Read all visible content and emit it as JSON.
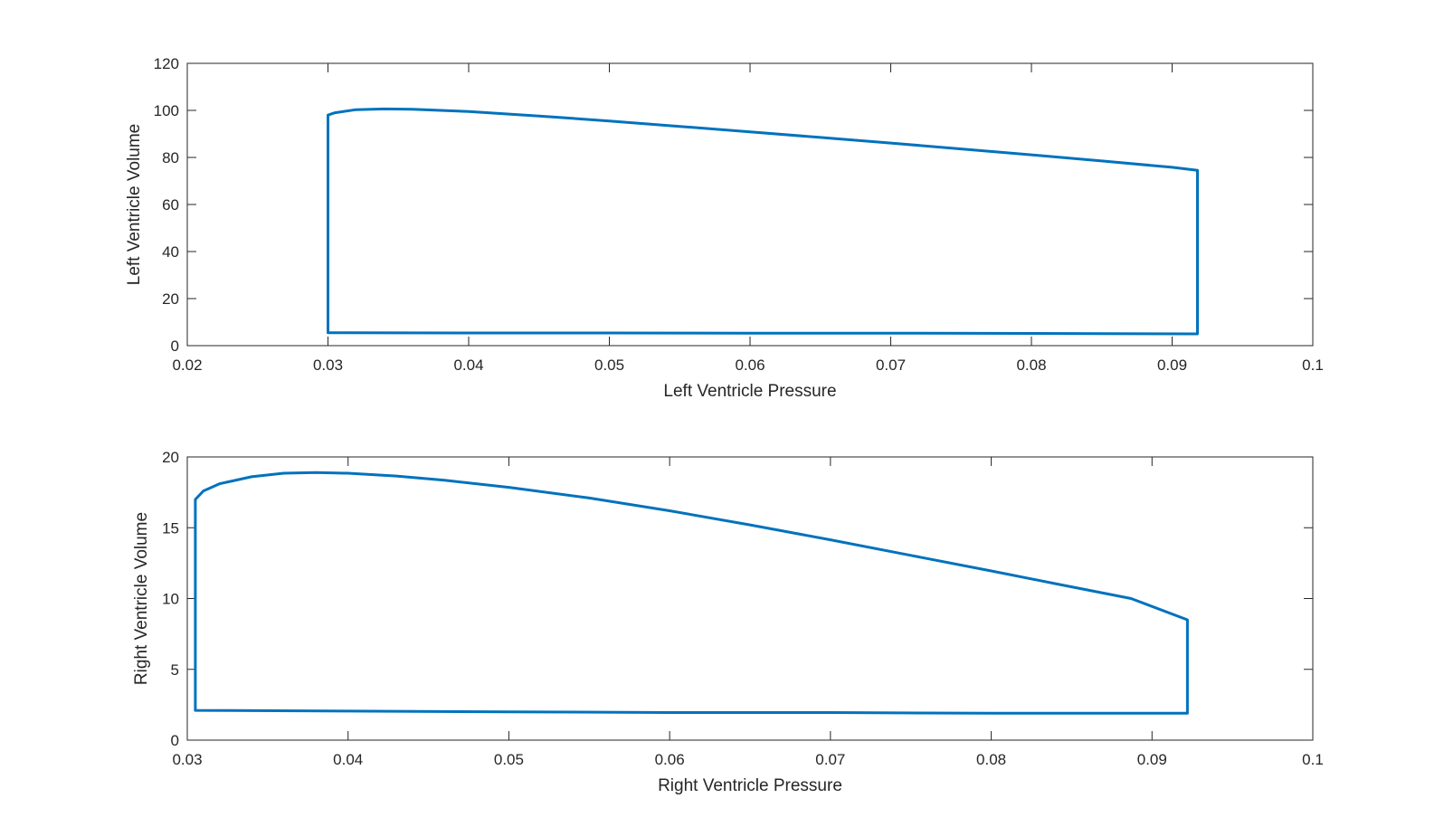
{
  "chart_data": [
    {
      "type": "line",
      "title": "",
      "xlabel": "Left Ventricle Pressure",
      "ylabel": "Left Ventricle Volume",
      "xlim": [
        0.02,
        0.1
      ],
      "ylim": [
        0,
        120
      ],
      "xticks": [
        "0.02",
        "0.03",
        "0.04",
        "0.05",
        "0.06",
        "0.07",
        "0.08",
        "0.09",
        "0.1"
      ],
      "yticks": [
        "0",
        "20",
        "40",
        "60",
        "80",
        "100",
        "120"
      ],
      "grid": false,
      "line_color": "#0072BD",
      "series": [
        {
          "x": [
            0.03,
            0.03,
            0.0305,
            0.032,
            0.034,
            0.036,
            0.04,
            0.045,
            0.05,
            0.055,
            0.06,
            0.065,
            0.07,
            0.075,
            0.08,
            0.085,
            0.09,
            0.0918,
            0.0918,
            0.0918,
            0.085,
            0.08,
            0.07,
            0.06,
            0.05,
            0.04,
            0.03,
            0.03
          ],
          "y": [
            5.5,
            98,
            99.0,
            100.3,
            100.6,
            100.5,
            99.5,
            97.6,
            95.5,
            93.2,
            90.9,
            88.5,
            86.1,
            83.6,
            81.1,
            78.5,
            75.8,
            74.5,
            60,
            5,
            5.1,
            5.2,
            5.3,
            5.3,
            5.4,
            5.4,
            5.5,
            5.5
          ]
        }
      ]
    },
    {
      "type": "line",
      "title": "",
      "xlabel": "Right Ventricle Pressure",
      "ylabel": "Right Ventricle Volume",
      "xlim": [
        0.03,
        0.1
      ],
      "ylim": [
        0,
        20
      ],
      "xticks": [
        "0.03",
        "0.04",
        "0.05",
        "0.06",
        "0.07",
        "0.08",
        "0.09",
        "0.1"
      ],
      "yticks": [
        "0",
        "5",
        "10",
        "15",
        "20"
      ],
      "grid": false,
      "line_color": "#0072BD",
      "series": [
        {
          "x": [
            0.0305,
            0.0305,
            0.031,
            0.032,
            0.034,
            0.036,
            0.038,
            0.04,
            0.043,
            0.046,
            0.05,
            0.055,
            0.06,
            0.065,
            0.07,
            0.075,
            0.08,
            0.084,
            0.0887,
            0.0922,
            0.0922,
            0.09,
            0.08,
            0.07,
            0.06,
            0.05,
            0.04,
            0.0305
          ],
          "y": [
            2.1,
            17.0,
            17.6,
            18.1,
            18.6,
            18.85,
            18.9,
            18.85,
            18.65,
            18.35,
            17.85,
            17.1,
            16.2,
            15.2,
            14.15,
            13.05,
            11.95,
            11.05,
            10.0,
            8.5,
            1.9,
            1.9,
            1.9,
            1.95,
            1.95,
            2.0,
            2.05,
            2.1
          ]
        }
      ]
    }
  ]
}
